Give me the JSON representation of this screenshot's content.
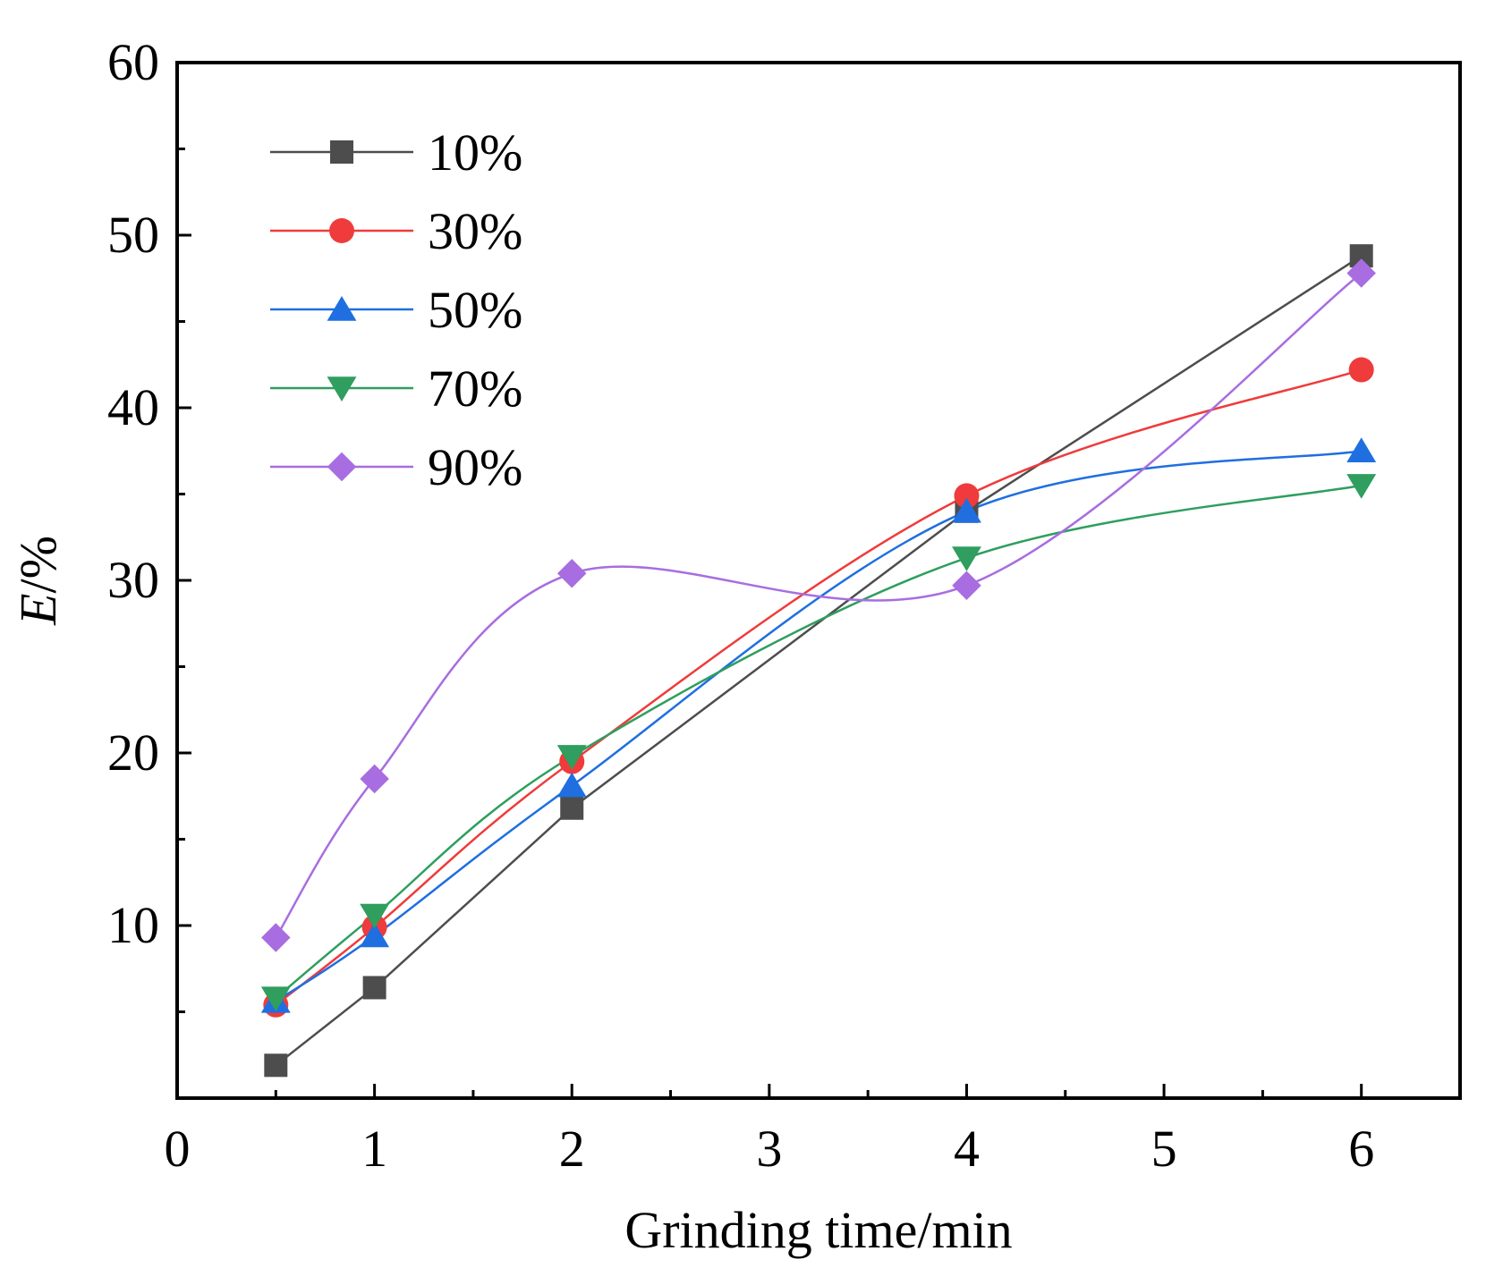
{
  "chart_data": {
    "type": "line",
    "title": "",
    "xlabel": "Grinding time/min",
    "ylabel_italic": "E",
    "ylabel_rest": "/%",
    "xlim": [
      0,
      6.5
    ],
    "ylim": [
      0,
      60
    ],
    "x_ticks": [
      0,
      1,
      2,
      3,
      4,
      5,
      6
    ],
    "y_ticks": [
      10,
      20,
      30,
      40,
      50,
      60
    ],
    "grid": false,
    "legend_position": "top-left",
    "x": [
      0.5,
      1,
      2,
      4,
      6
    ],
    "series": [
      {
        "name": "10%",
        "marker": "square",
        "color": "#4d4d4d",
        "values": [
          1.9,
          6.4,
          16.8,
          34.0,
          48.8
        ]
      },
      {
        "name": "30%",
        "marker": "circle",
        "color": "#ef3b3b",
        "values": [
          5.4,
          9.9,
          19.5,
          34.9,
          42.2
        ]
      },
      {
        "name": "50%",
        "marker": "triangle-up",
        "color": "#1f6fe0",
        "values": [
          5.6,
          9.4,
          18.1,
          34.0,
          37.5
        ]
      },
      {
        "name": "70%",
        "marker": "triangle-down",
        "color": "#2f9e5f",
        "values": [
          5.8,
          10.6,
          19.8,
          31.3,
          35.5
        ]
      },
      {
        "name": "90%",
        "marker": "diamond",
        "color": "#a86de0",
        "values": [
          9.3,
          18.5,
          30.4,
          29.7,
          47.8
        ]
      }
    ]
  }
}
